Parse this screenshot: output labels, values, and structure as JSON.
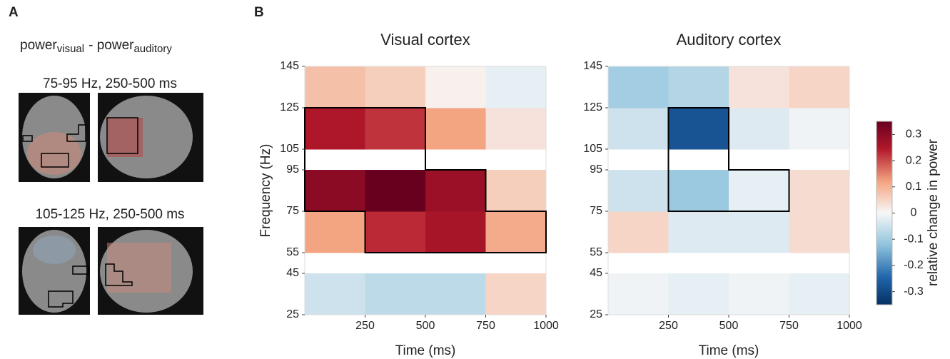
{
  "panel_a": {
    "label": "A",
    "formula": {
      "base1": "power",
      "sub1": "visual",
      "base2": "-  power",
      "sub2": "auditory"
    },
    "rows": [
      {
        "title": "75-95 Hz, 250-500 ms"
      },
      {
        "title": "105-125 Hz, 250-500 ms"
      }
    ]
  },
  "panel_b_label": "B",
  "colorbar": {
    "label": "relative change in power",
    "zlim": [
      -0.35,
      0.35
    ],
    "ticks": [
      -0.3,
      -0.2,
      -0.1,
      0,
      0.1,
      0.2,
      0.3
    ]
  },
  "chart_data": [
    {
      "type": "heatmap",
      "title": "Visual cortex",
      "x_label": "Time (ms)",
      "y_label": "Frequency (Hz)",
      "xbins": [
        0,
        250,
        500,
        750,
        1000
      ],
      "ybins": [
        25,
        45,
        55,
        75,
        95,
        105,
        125,
        145
      ],
      "xlim": [
        0,
        1000
      ],
      "ylim": [
        25,
        145
      ],
      "xticks": [
        250,
        500,
        750,
        1000
      ],
      "yticks": [
        25,
        45,
        55,
        75,
        95,
        105,
        125,
        145
      ],
      "values": [
        [
          -0.05,
          -0.07,
          -0.07,
          0.05
        ],
        [
          null,
          null,
          null,
          null
        ],
        [
          0.12,
          0.23,
          0.26,
          0.11
        ],
        [
          0.3,
          0.38,
          0.28,
          0.06
        ],
        [
          null,
          null,
          null,
          null
        ],
        [
          0.25,
          0.22,
          0.12,
          0.03
        ],
        [
          0.08,
          0.06,
          0.01,
          -0.02
        ]
      ],
      "cluster_mask": [
        [
          false,
          false,
          false,
          false
        ],
        [
          false,
          false,
          false,
          false
        ],
        [
          false,
          true,
          true,
          true
        ],
        [
          true,
          true,
          true,
          false
        ],
        [
          true,
          true,
          false,
          false
        ],
        [
          true,
          true,
          false,
          false
        ],
        [
          false,
          false,
          false,
          false
        ]
      ]
    },
    {
      "type": "heatmap",
      "title": "Auditory cortex",
      "x_label": "Time (ms)",
      "xbins": [
        0,
        250,
        500,
        750,
        1000
      ],
      "ybins": [
        25,
        45,
        55,
        75,
        95,
        105,
        125,
        145
      ],
      "xlim": [
        0,
        1000
      ],
      "ylim": [
        25,
        145
      ],
      "xticks": [
        250,
        500,
        750,
        1000
      ],
      "yticks": [
        25,
        45,
        55,
        75,
        95,
        105,
        125,
        145
      ],
      "values": [
        [
          -0.01,
          -0.02,
          -0.01,
          -0.02
        ],
        [
          null,
          null,
          null,
          null
        ],
        [
          0.05,
          -0.03,
          -0.03,
          0.04
        ],
        [
          -0.05,
          -0.11,
          -0.02,
          0.04
        ],
        [
          null,
          null,
          null,
          null
        ],
        [
          -0.05,
          -0.28,
          -0.03,
          -0.01
        ],
        [
          -0.1,
          -0.08,
          0.03,
          0.05
        ]
      ],
      "cluster_mask": [
        [
          false,
          false,
          false,
          false
        ],
        [
          false,
          false,
          false,
          false
        ],
        [
          false,
          false,
          false,
          false
        ],
        [
          false,
          true,
          true,
          false
        ],
        [
          false,
          true,
          false,
          false
        ],
        [
          false,
          true,
          false,
          false
        ],
        [
          false,
          false,
          false,
          false
        ]
      ]
    }
  ]
}
